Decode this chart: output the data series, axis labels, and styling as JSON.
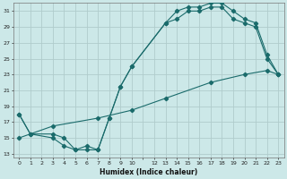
{
  "xlabel": "Humidex (Indice chaleur)",
  "bg_color": "#cce8e8",
  "grid_color": "#b0cccc",
  "line_color": "#1a6b6b",
  "xlim": [
    -0.5,
    23.5
  ],
  "ylim": [
    12.5,
    32.0
  ],
  "yticks": [
    13,
    15,
    17,
    19,
    21,
    23,
    25,
    27,
    29,
    31
  ],
  "xticks": [
    0,
    1,
    2,
    3,
    4,
    5,
    6,
    7,
    8,
    9,
    10,
    12,
    13,
    14,
    15,
    16,
    17,
    18,
    19,
    20,
    21,
    22,
    23
  ],
  "line1_x": [
    0,
    1,
    3,
    4,
    5,
    6,
    7,
    8,
    9,
    10,
    13,
    14,
    15,
    16,
    17,
    18,
    19,
    20,
    21,
    22,
    23
  ],
  "line1_y": [
    18,
    15.5,
    15,
    14,
    13.5,
    13.5,
    13.5,
    17.5,
    21.5,
    24,
    29.5,
    31,
    31.5,
    31.5,
    32,
    32,
    31,
    30,
    29.5,
    25.5,
    23
  ],
  "line2_x": [
    0,
    1,
    3,
    4,
    5,
    6,
    7,
    8,
    9,
    10,
    13,
    14,
    15,
    16,
    17,
    18,
    19,
    20,
    21,
    22,
    23
  ],
  "line2_y": [
    18,
    15.5,
    15.5,
    15,
    13.5,
    14,
    13.5,
    17.5,
    21.5,
    24,
    29.5,
    30,
    31,
    31,
    31.5,
    31.5,
    30,
    29.5,
    29,
    25,
    23
  ],
  "line3_x": [
    0,
    3,
    7,
    10,
    13,
    17,
    20,
    22,
    23
  ],
  "line3_y": [
    15,
    16.5,
    17.5,
    18.5,
    20,
    22,
    23,
    23.5,
    23
  ]
}
